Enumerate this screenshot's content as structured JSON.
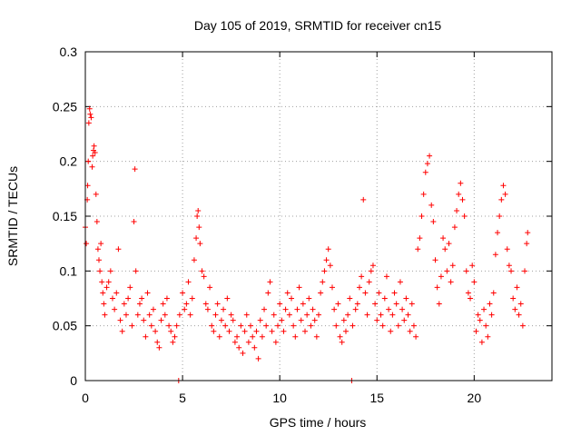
{
  "chart_data": {
    "type": "scatter",
    "title": "Day 105 of 2019, SRMTID for receiver cn15",
    "xlabel": "GPS time / hours",
    "ylabel": "SRMTID / TECUs",
    "xlim": [
      0,
      24
    ],
    "ylim": [
      0,
      0.3
    ],
    "x_ticks": [
      0,
      5,
      10,
      15,
      20
    ],
    "x_tick_labels": [
      "0",
      "5",
      "10",
      "15",
      "20"
    ],
    "y_ticks": [
      0,
      0.05,
      0.1,
      0.15,
      0.2,
      0.25,
      0.3
    ],
    "y_tick_labels": [
      "0",
      "0.05",
      "0.1",
      "0.15",
      "0.2",
      "0.25",
      "0.3"
    ],
    "grid": true,
    "marker": "+",
    "color": "#ff0000",
    "series": [
      {
        "name": "SRMTID",
        "points": [
          [
            0.0,
            0.14
          ],
          [
            0.05,
            0.125
          ],
          [
            0.1,
            0.165
          ],
          [
            0.12,
            0.178
          ],
          [
            0.15,
            0.2
          ],
          [
            0.18,
            0.235
          ],
          [
            0.22,
            0.248
          ],
          [
            0.25,
            0.243
          ],
          [
            0.3,
            0.24
          ],
          [
            0.35,
            0.195
          ],
          [
            0.38,
            0.205
          ],
          [
            0.42,
            0.21
          ],
          [
            0.45,
            0.214
          ],
          [
            0.5,
            0.208
          ],
          [
            0.55,
            0.17
          ],
          [
            0.6,
            0.145
          ],
          [
            0.65,
            0.12
          ],
          [
            0.7,
            0.11
          ],
          [
            0.75,
            0.1
          ],
          [
            0.8,
            0.125
          ],
          [
            0.85,
            0.09
          ],
          [
            0.9,
            0.08
          ],
          [
            0.95,
            0.07
          ],
          [
            1.0,
            0.06
          ],
          [
            1.1,
            0.085
          ],
          [
            1.2,
            0.09
          ],
          [
            1.3,
            0.1
          ],
          [
            1.4,
            0.075
          ],
          [
            1.5,
            0.065
          ],
          [
            1.6,
            0.08
          ],
          [
            1.7,
            0.12
          ],
          [
            1.8,
            0.055
          ],
          [
            1.9,
            0.045
          ],
          [
            2.0,
            0.07
          ],
          [
            2.1,
            0.06
          ],
          [
            2.2,
            0.075
          ],
          [
            2.3,
            0.085
          ],
          [
            2.4,
            0.05
          ],
          [
            2.5,
            0.145
          ],
          [
            2.55,
            0.193
          ],
          [
            2.6,
            0.1
          ],
          [
            2.7,
            0.06
          ],
          [
            2.8,
            0.07
          ],
          [
            2.9,
            0.075
          ],
          [
            3.0,
            0.055
          ],
          [
            3.1,
            0.04
          ],
          [
            3.2,
            0.08
          ],
          [
            3.3,
            0.06
          ],
          [
            3.4,
            0.05
          ],
          [
            3.5,
            0.065
          ],
          [
            3.6,
            0.045
          ],
          [
            3.7,
            0.035
          ],
          [
            3.8,
            0.03
          ],
          [
            3.9,
            0.055
          ],
          [
            4.0,
            0.07
          ],
          [
            4.1,
            0.06
          ],
          [
            4.2,
            0.075
          ],
          [
            4.3,
            0.05
          ],
          [
            4.4,
            0.045
          ],
          [
            4.5,
            0.035
          ],
          [
            4.6,
            0.04
          ],
          [
            4.7,
            0.05
          ],
          [
            4.8,
            0.0
          ],
          [
            4.85,
            0.06
          ],
          [
            5.0,
            0.08
          ],
          [
            5.1,
            0.065
          ],
          [
            5.2,
            0.07
          ],
          [
            5.3,
            0.09
          ],
          [
            5.4,
            0.06
          ],
          [
            5.5,
            0.075
          ],
          [
            5.6,
            0.11
          ],
          [
            5.7,
            0.13
          ],
          [
            5.75,
            0.15
          ],
          [
            5.8,
            0.155
          ],
          [
            5.85,
            0.14
          ],
          [
            5.9,
            0.125
          ],
          [
            6.0,
            0.1
          ],
          [
            6.1,
            0.095
          ],
          [
            6.2,
            0.07
          ],
          [
            6.3,
            0.065
          ],
          [
            6.4,
            0.085
          ],
          [
            6.5,
            0.05
          ],
          [
            6.6,
            0.045
          ],
          [
            6.7,
            0.06
          ],
          [
            6.8,
            0.07
          ],
          [
            6.9,
            0.04
          ],
          [
            7.0,
            0.055
          ],
          [
            7.1,
            0.065
          ],
          [
            7.2,
            0.05
          ],
          [
            7.3,
            0.075
          ],
          [
            7.4,
            0.045
          ],
          [
            7.5,
            0.06
          ],
          [
            7.6,
            0.055
          ],
          [
            7.7,
            0.035
          ],
          [
            7.8,
            0.04
          ],
          [
            7.9,
            0.03
          ],
          [
            8.0,
            0.05
          ],
          [
            8.1,
            0.025
          ],
          [
            8.2,
            0.045
          ],
          [
            8.3,
            0.06
          ],
          [
            8.4,
            0.035
          ],
          [
            8.5,
            0.05
          ],
          [
            8.6,
            0.04
          ],
          [
            8.7,
            0.03
          ],
          [
            8.8,
            0.045
          ],
          [
            8.9,
            0.02
          ],
          [
            9.0,
            0.055
          ],
          [
            9.1,
            0.04
          ],
          [
            9.2,
            0.065
          ],
          [
            9.3,
            0.05
          ],
          [
            9.4,
            0.08
          ],
          [
            9.5,
            0.09
          ],
          [
            9.6,
            0.045
          ],
          [
            9.7,
            0.06
          ],
          [
            9.8,
            0.035
          ],
          [
            9.9,
            0.05
          ],
          [
            10.0,
            0.07
          ],
          [
            10.1,
            0.055
          ],
          [
            10.2,
            0.045
          ],
          [
            10.3,
            0.065
          ],
          [
            10.4,
            0.08
          ],
          [
            10.5,
            0.06
          ],
          [
            10.6,
            0.075
          ],
          [
            10.7,
            0.05
          ],
          [
            10.8,
            0.04
          ],
          [
            10.9,
            0.065
          ],
          [
            11.0,
            0.085
          ],
          [
            11.1,
            0.055
          ],
          [
            11.2,
            0.07
          ],
          [
            11.3,
            0.045
          ],
          [
            11.4,
            0.06
          ],
          [
            11.5,
            0.075
          ],
          [
            11.6,
            0.05
          ],
          [
            11.7,
            0.065
          ],
          [
            11.8,
            0.055
          ],
          [
            11.9,
            0.04
          ],
          [
            12.0,
            0.06
          ],
          [
            12.1,
            0.08
          ],
          [
            12.2,
            0.09
          ],
          [
            12.3,
            0.1
          ],
          [
            12.4,
            0.11
          ],
          [
            12.5,
            0.12
          ],
          [
            12.6,
            0.105
          ],
          [
            12.7,
            0.085
          ],
          [
            12.8,
            0.065
          ],
          [
            12.9,
            0.05
          ],
          [
            13.0,
            0.07
          ],
          [
            13.1,
            0.04
          ],
          [
            13.2,
            0.035
          ],
          [
            13.3,
            0.055
          ],
          [
            13.4,
            0.045
          ],
          [
            13.5,
            0.06
          ],
          [
            13.6,
            0.075
          ],
          [
            13.7,
            0.0
          ],
          [
            13.75,
            0.05
          ],
          [
            13.9,
            0.065
          ],
          [
            14.0,
            0.07
          ],
          [
            14.1,
            0.085
          ],
          [
            14.2,
            0.095
          ],
          [
            14.3,
            0.165
          ],
          [
            14.4,
            0.08
          ],
          [
            14.5,
            0.06
          ],
          [
            14.6,
            0.09
          ],
          [
            14.7,
            0.1
          ],
          [
            14.8,
            0.105
          ],
          [
            14.9,
            0.07
          ],
          [
            15.0,
            0.055
          ],
          [
            15.1,
            0.08
          ],
          [
            15.2,
            0.06
          ],
          [
            15.3,
            0.05
          ],
          [
            15.4,
            0.075
          ],
          [
            15.5,
            0.095
          ],
          [
            15.6,
            0.065
          ],
          [
            15.7,
            0.045
          ],
          [
            15.8,
            0.06
          ],
          [
            15.9,
            0.08
          ],
          [
            16.0,
            0.07
          ],
          [
            16.1,
            0.05
          ],
          [
            16.2,
            0.09
          ],
          [
            16.3,
            0.065
          ],
          [
            16.4,
            0.055
          ],
          [
            16.5,
            0.075
          ],
          [
            16.6,
            0.06
          ],
          [
            16.7,
            0.045
          ],
          [
            16.8,
            0.07
          ],
          [
            16.9,
            0.05
          ],
          [
            17.0,
            0.04
          ],
          [
            17.1,
            0.12
          ],
          [
            17.2,
            0.13
          ],
          [
            17.3,
            0.15
          ],
          [
            17.4,
            0.17
          ],
          [
            17.5,
            0.19
          ],
          [
            17.6,
            0.198
          ],
          [
            17.7,
            0.205
          ],
          [
            17.8,
            0.16
          ],
          [
            17.9,
            0.145
          ],
          [
            18.0,
            0.11
          ],
          [
            18.1,
            0.085
          ],
          [
            18.2,
            0.07
          ],
          [
            18.3,
            0.095
          ],
          [
            18.4,
            0.13
          ],
          [
            18.5,
            0.12
          ],
          [
            18.6,
            0.1
          ],
          [
            18.7,
            0.125
          ],
          [
            18.8,
            0.09
          ],
          [
            18.9,
            0.105
          ],
          [
            19.0,
            0.14
          ],
          [
            19.1,
            0.155
          ],
          [
            19.2,
            0.17
          ],
          [
            19.3,
            0.18
          ],
          [
            19.4,
            0.165
          ],
          [
            19.5,
            0.15
          ],
          [
            19.6,
            0.1
          ],
          [
            19.7,
            0.08
          ],
          [
            19.8,
            0.075
          ],
          [
            19.9,
            0.105
          ],
          [
            20.0,
            0.09
          ],
          [
            20.1,
            0.045
          ],
          [
            20.2,
            0.06
          ],
          [
            20.3,
            0.055
          ],
          [
            20.4,
            0.035
          ],
          [
            20.5,
            0.065
          ],
          [
            20.6,
            0.05
          ],
          [
            20.7,
            0.04
          ],
          [
            20.8,
            0.07
          ],
          [
            20.9,
            0.06
          ],
          [
            21.0,
            0.08
          ],
          [
            21.1,
            0.115
          ],
          [
            21.2,
            0.135
          ],
          [
            21.3,
            0.15
          ],
          [
            21.4,
            0.165
          ],
          [
            21.5,
            0.178
          ],
          [
            21.6,
            0.17
          ],
          [
            21.7,
            0.12
          ],
          [
            21.8,
            0.105
          ],
          [
            21.9,
            0.1
          ],
          [
            22.0,
            0.075
          ],
          [
            22.1,
            0.065
          ],
          [
            22.2,
            0.085
          ],
          [
            22.3,
            0.06
          ],
          [
            22.4,
            0.07
          ],
          [
            22.5,
            0.05
          ],
          [
            22.6,
            0.1
          ],
          [
            22.7,
            0.125
          ],
          [
            22.75,
            0.135
          ]
        ]
      }
    ]
  }
}
